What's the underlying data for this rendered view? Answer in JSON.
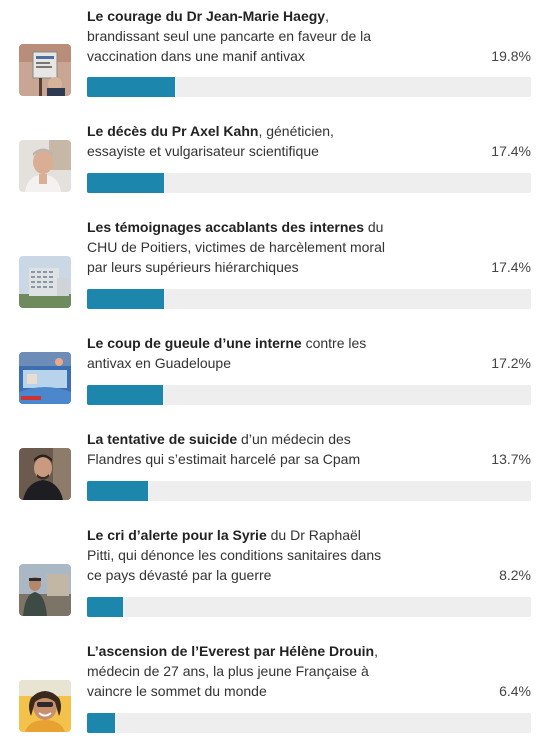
{
  "accent_color": "#1c86ac",
  "track_color": "#eeeeee",
  "options": [
    {
      "bold": "Le courage du Dr Jean-Marie Haegy",
      "rest": ", brandissant seul une pancarte en faveur de la vaccination dans une manif antivax",
      "percent_label": "19.8%",
      "percent": 19.8,
      "thumbnail": "protest-sign-photo"
    },
    {
      "bold": "Le décès du Pr Axel Kahn",
      "rest": ", généticien, essayiste et vulgarisateur scientifique",
      "percent_label": "17.4%",
      "percent": 17.4,
      "thumbnail": "portrait-photo"
    },
    {
      "bold": "Les témoignages accablants des internes",
      "rest": " du CHU de Poitiers, victimes de harcèlement moral par leurs supérieurs hiérarchiques",
      "percent_label": "17.4%",
      "percent": 17.4,
      "thumbnail": "hospital-building-photo"
    },
    {
      "bold": "Le coup de gueule d’une interne",
      "rest": " contre les antivax en Guadeloupe",
      "percent_label": "17.2%",
      "percent": 17.2,
      "thumbnail": "hospital-bed-photo"
    },
    {
      "bold": "La tentative de suicide",
      "rest": " d’un médecin des Flandres qui s’estimait harcelé par sa Cpam",
      "percent_label": "13.7%",
      "percent": 13.7,
      "thumbnail": "doctor-portrait-photo"
    },
    {
      "bold": "Le cri d’alerte pour la Syrie",
      "rest": " du Dr Raphaël Pitti, qui dénonce les conditions sanitaires dans ce pays dévasté par la guerre",
      "percent_label": "8.2%",
      "percent": 8.2,
      "thumbnail": "street-scene-photo"
    },
    {
      "bold": "L’ascension de l’Everest par Hélène Drouin",
      "rest": ", médecin de 27 ans, la plus jeune Française à vaincre le sommet du monde",
      "percent_label": "6.4%",
      "percent": 6.4,
      "thumbnail": "mountaineer-photo"
    }
  ]
}
